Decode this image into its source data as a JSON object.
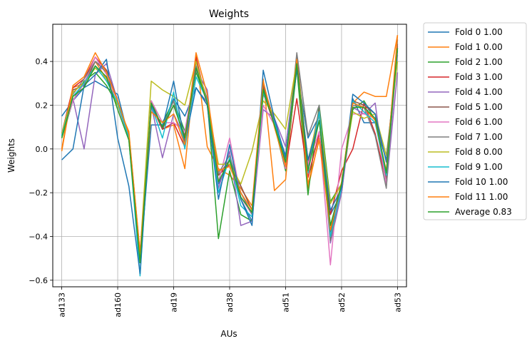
{
  "chart_data": {
    "type": "line",
    "title": "Weights",
    "xlabel": "AUs",
    "ylabel": "Weights",
    "ylim": [
      -0.63,
      0.57
    ],
    "yticks": [
      -0.6,
      -0.4,
      -0.2,
      0.0,
      0.2,
      0.4
    ],
    "ytick_labels": [
      "−0.6",
      "−0.4",
      "−0.2",
      "0.0",
      "0.2",
      "0.4"
    ],
    "xlim": [
      -0.8,
      30.8
    ],
    "xticks": [
      0,
      5,
      10,
      15,
      20,
      25,
      30
    ],
    "xtick_labels": [
      "ad133",
      "ad160",
      "ad19",
      "ad38",
      "ad51",
      "ad52",
      "ad53"
    ],
    "grid": true,
    "legend_position": "outside-right",
    "series": [
      {
        "name": "Fold 0 1.00",
        "color": "#1f77b4",
        "values": [
          0.15,
          0.22,
          0.28,
          0.31,
          0.28,
          0.25,
          0.05,
          -0.52,
          0.11,
          0.11,
          0.23,
          0.15,
          0.28,
          0.21,
          -0.16,
          -0.05,
          -0.23,
          -0.33,
          0.3,
          0.12,
          -0.03,
          0.36,
          0.05,
          0.15,
          -0.3,
          -0.2,
          0.23,
          0.12,
          0.12,
          -0.05,
          0.43
        ]
      },
      {
        "name": "Fold 1 0.00",
        "color": "#ff7f0e",
        "values": [
          -0.01,
          0.28,
          0.3,
          0.4,
          0.32,
          0.2,
          0.08,
          -0.48,
          0.2,
          0.09,
          0.11,
          -0.09,
          0.43,
          0.01,
          -0.09,
          -0.12,
          -0.18,
          -0.26,
          0.32,
          -0.19,
          -0.14,
          0.4,
          -0.18,
          0.05,
          -0.35,
          -0.2,
          0.21,
          0.26,
          0.24,
          0.24,
          0.52
        ]
      },
      {
        "name": "Fold 2 1.00",
        "color": "#2ca02c",
        "values": [
          0.05,
          0.22,
          0.31,
          0.35,
          0.29,
          0.2,
          0.05,
          -0.52,
          0.22,
          0.12,
          0.22,
          0.08,
          0.35,
          0.22,
          -0.41,
          -0.1,
          -0.3,
          -0.33,
          0.28,
          0.11,
          -0.1,
          0.37,
          -0.21,
          0.2,
          -0.24,
          -0.16,
          0.18,
          0.22,
          0.13,
          -0.11,
          0.45
        ]
      },
      {
        "name": "Fold 3 1.00",
        "color": "#d62728",
        "values": [
          0.07,
          0.28,
          0.32,
          0.42,
          0.36,
          0.22,
          0.06,
          -0.5,
          0.2,
          0.09,
          0.12,
          0.01,
          0.42,
          0.2,
          -0.12,
          -0.07,
          -0.17,
          -0.28,
          0.26,
          0.11,
          -0.09,
          0.23,
          -0.13,
          0.07,
          -0.3,
          -0.1,
          0.0,
          0.21,
          0.07,
          -0.15,
          0.47
        ]
      },
      {
        "name": "Fold 4 1.00",
        "color": "#9467bd",
        "values": [
          0.06,
          0.23,
          0.0,
          0.34,
          0.39,
          0.22,
          0.05,
          -0.5,
          0.2,
          -0.04,
          0.16,
          0.05,
          0.36,
          0.27,
          -0.18,
          -0.01,
          -0.35,
          -0.33,
          0.18,
          0.14,
          0.01,
          0.4,
          -0.08,
          0.16,
          -0.43,
          -0.2,
          0.19,
          0.16,
          0.21,
          -0.17,
          0.35
        ]
      },
      {
        "name": "Fold 5 1.00",
        "color": "#8c564b",
        "values": [
          0.06,
          0.27,
          0.29,
          0.4,
          0.36,
          0.22,
          0.05,
          -0.52,
          0.22,
          0.09,
          0.2,
          0.06,
          0.4,
          0.21,
          -0.12,
          -0.05,
          -0.17,
          -0.28,
          0.29,
          0.13,
          -0.08,
          0.43,
          -0.07,
          0.18,
          -0.38,
          -0.18,
          0.22,
          0.2,
          0.16,
          -0.14,
          0.48
        ]
      },
      {
        "name": "Fold 6 1.00",
        "color": "#e377c2",
        "values": [
          0.06,
          0.22,
          0.3,
          0.42,
          0.34,
          0.2,
          0.05,
          -0.52,
          0.22,
          0.12,
          0.12,
          0.08,
          0.38,
          0.2,
          -0.15,
          0.05,
          -0.22,
          -0.3,
          0.2,
          0.11,
          -0.09,
          0.4,
          -0.07,
          0.08,
          -0.53,
          0.0,
          0.16,
          0.16,
          0.14,
          -0.16,
          0.44
        ]
      },
      {
        "name": "Fold 7 1.00",
        "color": "#7f7f7f",
        "values": [
          0.06,
          0.25,
          0.32,
          0.4,
          0.35,
          0.22,
          0.05,
          -0.52,
          0.2,
          0.1,
          0.22,
          0.03,
          0.38,
          0.23,
          -0.11,
          -0.03,
          -0.2,
          -0.3,
          0.25,
          0.14,
          -0.06,
          0.44,
          0.06,
          0.2,
          -0.42,
          -0.17,
          0.2,
          0.19,
          0.06,
          -0.18,
          0.5
        ]
      },
      {
        "name": "Fold 8 0.00",
        "color": "#bcbd22",
        "values": [
          0.07,
          0.26,
          0.3,
          0.37,
          0.32,
          0.2,
          0.07,
          -0.48,
          0.31,
          0.27,
          0.24,
          0.2,
          0.4,
          0.21,
          -0.07,
          -0.07,
          -0.16,
          -0.01,
          0.22,
          0.16,
          0.09,
          0.4,
          -0.05,
          0.16,
          -0.25,
          -0.16,
          0.17,
          0.14,
          0.16,
          -0.03,
          0.4
        ]
      },
      {
        "name": "Fold 9 1.00",
        "color": "#17becf",
        "values": [
          0.06,
          0.24,
          0.3,
          0.38,
          0.31,
          0.21,
          0.05,
          -0.58,
          0.2,
          0.05,
          0.26,
          0.0,
          0.33,
          0.22,
          -0.2,
          -0.04,
          -0.26,
          -0.31,
          0.26,
          0.12,
          -0.04,
          0.39,
          -0.11,
          0.17,
          -0.4,
          -0.18,
          0.22,
          0.17,
          0.12,
          -0.12,
          0.46
        ]
      },
      {
        "name": "Fold 10 1.00",
        "color": "#1f77b4",
        "values": [
          -0.05,
          0.0,
          0.29,
          0.34,
          0.41,
          0.05,
          -0.17,
          -0.57,
          0.2,
          0.1,
          0.31,
          0.03,
          0.28,
          0.2,
          -0.23,
          0.02,
          -0.23,
          -0.35,
          0.36,
          0.14,
          -0.04,
          0.37,
          -0.05,
          0.13,
          -0.28,
          -0.18,
          0.25,
          0.21,
          0.16,
          -0.06,
          0.46
        ]
      },
      {
        "name": "Fold 11 1.00",
        "color": "#ff7f0e",
        "values": [
          0.0,
          0.29,
          0.33,
          0.44,
          0.35,
          0.22,
          0.07,
          -0.47,
          0.17,
          0.12,
          0.16,
          0.02,
          0.44,
          0.25,
          -0.1,
          -0.08,
          -0.2,
          -0.28,
          0.31,
          0.1,
          -0.08,
          0.41,
          -0.16,
          0.04,
          -0.37,
          -0.15,
          0.21,
          0.19,
          0.13,
          -0.1,
          0.52
        ]
      },
      {
        "name": "Average 0.83",
        "color": "#2ca02c",
        "values": [
          0.05,
          0.24,
          0.28,
          0.38,
          0.33,
          0.18,
          0.04,
          -0.52,
          0.21,
          0.1,
          0.2,
          0.05,
          0.37,
          0.21,
          -0.15,
          -0.05,
          -0.22,
          -0.29,
          0.27,
          0.11,
          -0.06,
          0.39,
          -0.1,
          0.13,
          -0.35,
          -0.16,
          0.19,
          0.19,
          0.14,
          -0.11,
          0.46
        ]
      }
    ]
  }
}
